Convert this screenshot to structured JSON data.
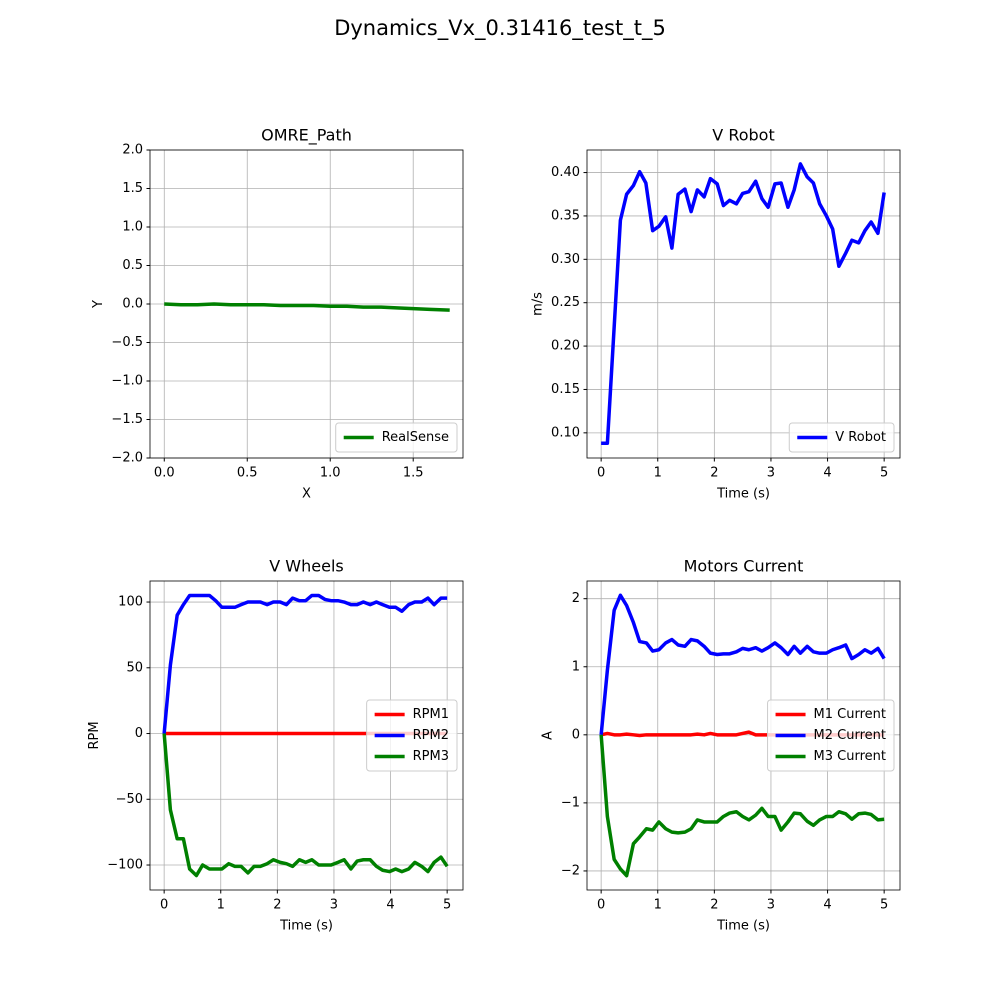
{
  "title": "Dynamics_Vx_0.31416_test_t_5",
  "chart_data": [
    {
      "type": "line",
      "title": "OMRE_Path",
      "x_label": "X",
      "y_label": "Y",
      "grid": true,
      "legend": "lower right",
      "x": [
        0,
        0.1,
        0.2,
        0.3,
        0.4,
        0.5,
        0.6,
        0.7,
        0.8,
        0.9,
        1.0,
        1.1,
        1.2,
        1.3,
        1.4,
        1.5,
        1.6,
        1.72
      ],
      "series": [
        {
          "name": "RealSense",
          "color": "#008000",
          "values": [
            0,
            -0.01,
            -0.01,
            0,
            -0.01,
            -0.01,
            -0.01,
            -0.02,
            -0.02,
            -0.02,
            -0.03,
            -0.03,
            -0.04,
            -0.04,
            -0.05,
            -0.06,
            -0.07,
            -0.08
          ]
        }
      ],
      "xlim": [
        -0.086,
        1.8
      ],
      "xticks": [
        {
          "value": 0,
          "label": "0.0"
        },
        {
          "value": 0.5,
          "label": "0.5"
        },
        {
          "value": 1,
          "label": "1.0"
        },
        {
          "value": 1.5,
          "label": "1.5"
        }
      ],
      "ylim": [
        -2,
        2
      ],
      "yticks": [
        {
          "value": -2,
          "label": "−2.0"
        },
        {
          "value": -1.5,
          "label": "−1.5"
        },
        {
          "value": -1,
          "label": "−1.0"
        },
        {
          "value": -0.5,
          "label": "−0.5"
        },
        {
          "value": 0,
          "label": "0.0"
        },
        {
          "value": 0.5,
          "label": "0.5"
        },
        {
          "value": 1,
          "label": "1.0"
        },
        {
          "value": 1.5,
          "label": "1.5"
        },
        {
          "value": 2,
          "label": "2.0"
        }
      ]
    },
    {
      "type": "line",
      "title": "V Robot",
      "x_label": "Time (s)",
      "y_label": "m/s",
      "grid": true,
      "legend": "lower right",
      "x": [
        0,
        0.11,
        0.34,
        0.45,
        0.57,
        0.68,
        0.79,
        0.91,
        1.02,
        1.14,
        1.25,
        1.36,
        1.48,
        1.59,
        1.7,
        1.82,
        1.93,
        2.05,
        2.16,
        2.27,
        2.39,
        2.5,
        2.61,
        2.73,
        2.84,
        2.95,
        3.07,
        3.18,
        3.3,
        3.41,
        3.52,
        3.64,
        3.75,
        3.86,
        3.98,
        4.09,
        4.2,
        4.32,
        4.43,
        4.55,
        4.66,
        4.77,
        4.89,
        5.0
      ],
      "series": [
        {
          "name": "V Robot",
          "color": "#0000ff",
          "values": [
            0.088,
            0.088,
            0.345,
            0.375,
            0.385,
            0.401,
            0.388,
            0.333,
            0.338,
            0.349,
            0.313,
            0.375,
            0.381,
            0.355,
            0.38,
            0.372,
            0.393,
            0.387,
            0.362,
            0.368,
            0.364,
            0.376,
            0.378,
            0.39,
            0.37,
            0.36,
            0.387,
            0.388,
            0.36,
            0.38,
            0.41,
            0.395,
            0.388,
            0.364,
            0.35,
            0.335,
            0.292,
            0.307,
            0.322,
            0.319,
            0.333,
            0.343,
            0.33,
            0.377
          ]
        }
      ],
      "xlim": [
        -0.25,
        5.28
      ],
      "xticks": [
        0,
        1,
        2,
        3,
        4,
        5
      ],
      "ylim": [
        0.071,
        0.426
      ],
      "yticks": [
        {
          "value": 0.1,
          "label": "0.10"
        },
        {
          "value": 0.15,
          "label": "0.15"
        },
        {
          "value": 0.2,
          "label": "0.20"
        },
        {
          "value": 0.25,
          "label": "0.25"
        },
        {
          "value": 0.3,
          "label": "0.30"
        },
        {
          "value": 0.35,
          "label": "0.35"
        },
        {
          "value": 0.4,
          "label": "0.40"
        }
      ]
    },
    {
      "type": "line",
      "title": "V Wheels",
      "x_label": "Time (s)",
      "y_label": "RPM",
      "grid": true,
      "legend": "center right",
      "x": [
        0,
        0.11,
        0.23,
        0.34,
        0.45,
        0.57,
        0.68,
        0.8,
        0.91,
        1.02,
        1.14,
        1.25,
        1.36,
        1.48,
        1.59,
        1.7,
        1.82,
        1.93,
        2.05,
        2.16,
        2.27,
        2.39,
        2.5,
        2.61,
        2.73,
        2.84,
        2.95,
        3.07,
        3.18,
        3.3,
        3.41,
        3.52,
        3.64,
        3.75,
        3.86,
        3.98,
        4.09,
        4.2,
        4.32,
        4.43,
        4.55,
        4.66,
        4.77,
        4.89,
        5.0
      ],
      "series": [
        {
          "name": "RPM1",
          "color": "#ff0000",
          "values": [
            0,
            0,
            0,
            0,
            0,
            0,
            0,
            0,
            0,
            0,
            0,
            0,
            0,
            0,
            0,
            0,
            0,
            0,
            0,
            0,
            0,
            0,
            0,
            0,
            0,
            0,
            0,
            0,
            0,
            0,
            0,
            0,
            0,
            0,
            0,
            0,
            0,
            0,
            0,
            0,
            0,
            0,
            0,
            0,
            0
          ]
        },
        {
          "name": "RPM2",
          "color": "#0000ff",
          "values": [
            0,
            52,
            90,
            98,
            105,
            105,
            105,
            105,
            101,
            96,
            96,
            96,
            98,
            100,
            100,
            100,
            98,
            100,
            100,
            98,
            103,
            101,
            101,
            105,
            105,
            102,
            101,
            101,
            100,
            98,
            98,
            100,
            98,
            100,
            98,
            96,
            96,
            93,
            98,
            100,
            100,
            103,
            98,
            103,
            103
          ]
        },
        {
          "name": "RPM3",
          "color": "#008000",
          "values": [
            0,
            -58,
            -80,
            -80,
            -103,
            -108,
            -100,
            -103,
            -103,
            -103,
            -99,
            -101,
            -101,
            -106,
            -101,
            -101,
            -99,
            -96,
            -98,
            -99,
            -101,
            -96,
            -98,
            -96,
            -100,
            -100,
            -100,
            -98,
            -96,
            -103,
            -97,
            -96,
            -96,
            -101,
            -104,
            -105,
            -103,
            -105,
            -103,
            -98,
            -101,
            -105,
            -98,
            -94,
            -101
          ]
        }
      ],
      "xlim": [
        -0.25,
        5.28
      ],
      "xticks": [
        0,
        1,
        2,
        3,
        4,
        5
      ],
      "ylim": [
        -119,
        116
      ],
      "yticks": [
        {
          "value": -100,
          "label": "−100"
        },
        {
          "value": -50,
          "label": "−50"
        },
        0,
        50,
        100
      ]
    },
    {
      "type": "line",
      "title": "Motors Current",
      "x_label": "Time (s)",
      "y_label": "A",
      "grid": true,
      "legend": "center right",
      "x": [
        0,
        0.11,
        0.23,
        0.34,
        0.45,
        0.57,
        0.68,
        0.8,
        0.91,
        1.02,
        1.14,
        1.25,
        1.36,
        1.48,
        1.59,
        1.7,
        1.82,
        1.93,
        2.05,
        2.16,
        2.27,
        2.39,
        2.5,
        2.61,
        2.73,
        2.84,
        2.95,
        3.07,
        3.18,
        3.3,
        3.41,
        3.52,
        3.64,
        3.75,
        3.86,
        3.98,
        4.09,
        4.2,
        4.32,
        4.43,
        4.55,
        4.66,
        4.77,
        4.89,
        5.0
      ],
      "series": [
        {
          "name": "M1 Current",
          "color": "#ff0000",
          "values": [
            0,
            0.02,
            0,
            0,
            0.01,
            0,
            -0.01,
            0,
            0,
            0,
            0,
            0,
            0,
            0,
            0,
            0.01,
            0,
            0.02,
            0,
            0,
            0,
            0,
            0.02,
            0.04,
            0,
            0,
            0,
            0,
            0,
            0,
            0,
            0,
            0,
            0,
            0,
            0,
            0,
            0,
            0,
            0,
            0,
            0,
            0,
            0,
            0
          ]
        },
        {
          "name": "M2 Current",
          "color": "#0000ff",
          "values": [
            0,
            0.95,
            1.83,
            2.05,
            1.9,
            1.65,
            1.37,
            1.35,
            1.23,
            1.25,
            1.35,
            1.4,
            1.32,
            1.3,
            1.4,
            1.38,
            1.3,
            1.2,
            1.18,
            1.19,
            1.19,
            1.22,
            1.27,
            1.25,
            1.28,
            1.23,
            1.28,
            1.35,
            1.28,
            1.18,
            1.3,
            1.2,
            1.3,
            1.22,
            1.2,
            1.2,
            1.25,
            1.28,
            1.32,
            1.12,
            1.18,
            1.25,
            1.2,
            1.27,
            1.12
          ]
        },
        {
          "name": "M3 Current",
          "color": "#008000",
          "values": [
            0,
            -1.2,
            -1.83,
            -1.97,
            -2.07,
            -1.6,
            -1.5,
            -1.38,
            -1.4,
            -1.28,
            -1.38,
            -1.43,
            -1.44,
            -1.43,
            -1.38,
            -1.25,
            -1.28,
            -1.28,
            -1.28,
            -1.2,
            -1.15,
            -1.13,
            -1.2,
            -1.25,
            -1.18,
            -1.08,
            -1.2,
            -1.2,
            -1.4,
            -1.28,
            -1.15,
            -1.16,
            -1.27,
            -1.33,
            -1.25,
            -1.2,
            -1.2,
            -1.13,
            -1.16,
            -1.24,
            -1.16,
            -1.15,
            -1.17,
            -1.25,
            -1.24
          ]
        }
      ],
      "xlim": [
        -0.25,
        5.28
      ],
      "xticks": [
        0,
        1,
        2,
        3,
        4,
        5
      ],
      "ylim": [
        -2.28,
        2.26
      ],
      "yticks": [
        {
          "value": -2,
          "label": "−2"
        },
        {
          "value": -1,
          "label": "−1"
        },
        0,
        1,
        2
      ]
    }
  ]
}
